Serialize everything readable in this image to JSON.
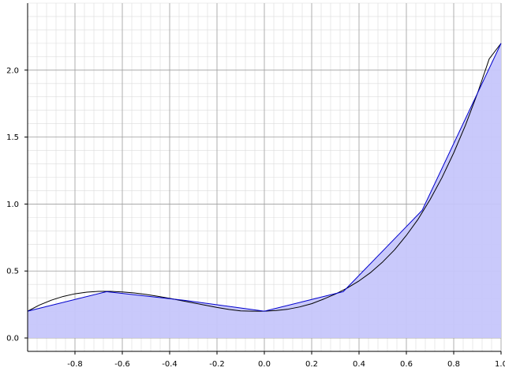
{
  "chart_data": {
    "type": "line",
    "title": "",
    "xlabel": "",
    "ylabel": "",
    "xlim": [
      -1.0,
      1.0
    ],
    "ylim": [
      -0.1,
      2.5
    ],
    "grid": true,
    "x_ticks": [
      -0.8,
      -0.6,
      -0.4,
      -0.2,
      0.0,
      0.2,
      0.4,
      0.6,
      0.8,
      1.0
    ],
    "x_tick_labels": [
      "-0.8",
      "-0.6",
      "-0.4",
      "-0.2",
      "0.0",
      "0.2",
      "0.4",
      "0.6",
      "0.8",
      "1.0"
    ],
    "y_ticks": [
      0.0,
      0.5,
      1.0,
      1.5,
      2.0
    ],
    "y_tick_labels": [
      "0.0",
      "0.5",
      "1.0",
      "1.5",
      "2.0"
    ],
    "series": [
      {
        "type": "line",
        "color": "#000000",
        "x": [
          -1.0,
          -0.95,
          -0.9,
          -0.85,
          -0.8,
          -0.75,
          -0.7,
          -0.65,
          -0.6,
          -0.55,
          -0.5,
          -0.45,
          -0.4,
          -0.35,
          -0.3,
          -0.25,
          -0.2,
          -0.15,
          -0.1,
          -0.05,
          0.0,
          0.05,
          0.1,
          0.15,
          0.2,
          0.25,
          0.3,
          0.35,
          0.4,
          0.45,
          0.5,
          0.55,
          0.6,
          0.65,
          0.7,
          0.75,
          0.8,
          0.85,
          0.9,
          0.95,
          1.0
        ],
        "y": [
          0.2,
          0.246,
          0.282,
          0.31,
          0.33,
          0.342,
          0.348,
          0.348,
          0.344,
          0.336,
          0.325,
          0.311,
          0.296,
          0.279,
          0.262,
          0.245,
          0.228,
          0.213,
          0.202,
          0.2,
          0.2,
          0.205,
          0.215,
          0.232,
          0.256,
          0.29,
          0.328,
          0.373,
          0.426,
          0.49,
          0.568,
          0.658,
          0.766,
          0.888,
          1.033,
          1.196,
          1.382,
          1.59,
          1.825,
          2.084,
          2.2
        ]
      },
      {
        "type": "area",
        "color": "#0000cc",
        "fill": "#c6c6fb",
        "x": [
          -1.0,
          -0.6667,
          -0.3333,
          0.0,
          0.3333,
          0.6667,
          1.0
        ],
        "y": [
          0.2,
          0.346,
          0.28,
          0.2,
          0.346,
          0.953,
          2.2
        ]
      }
    ]
  }
}
